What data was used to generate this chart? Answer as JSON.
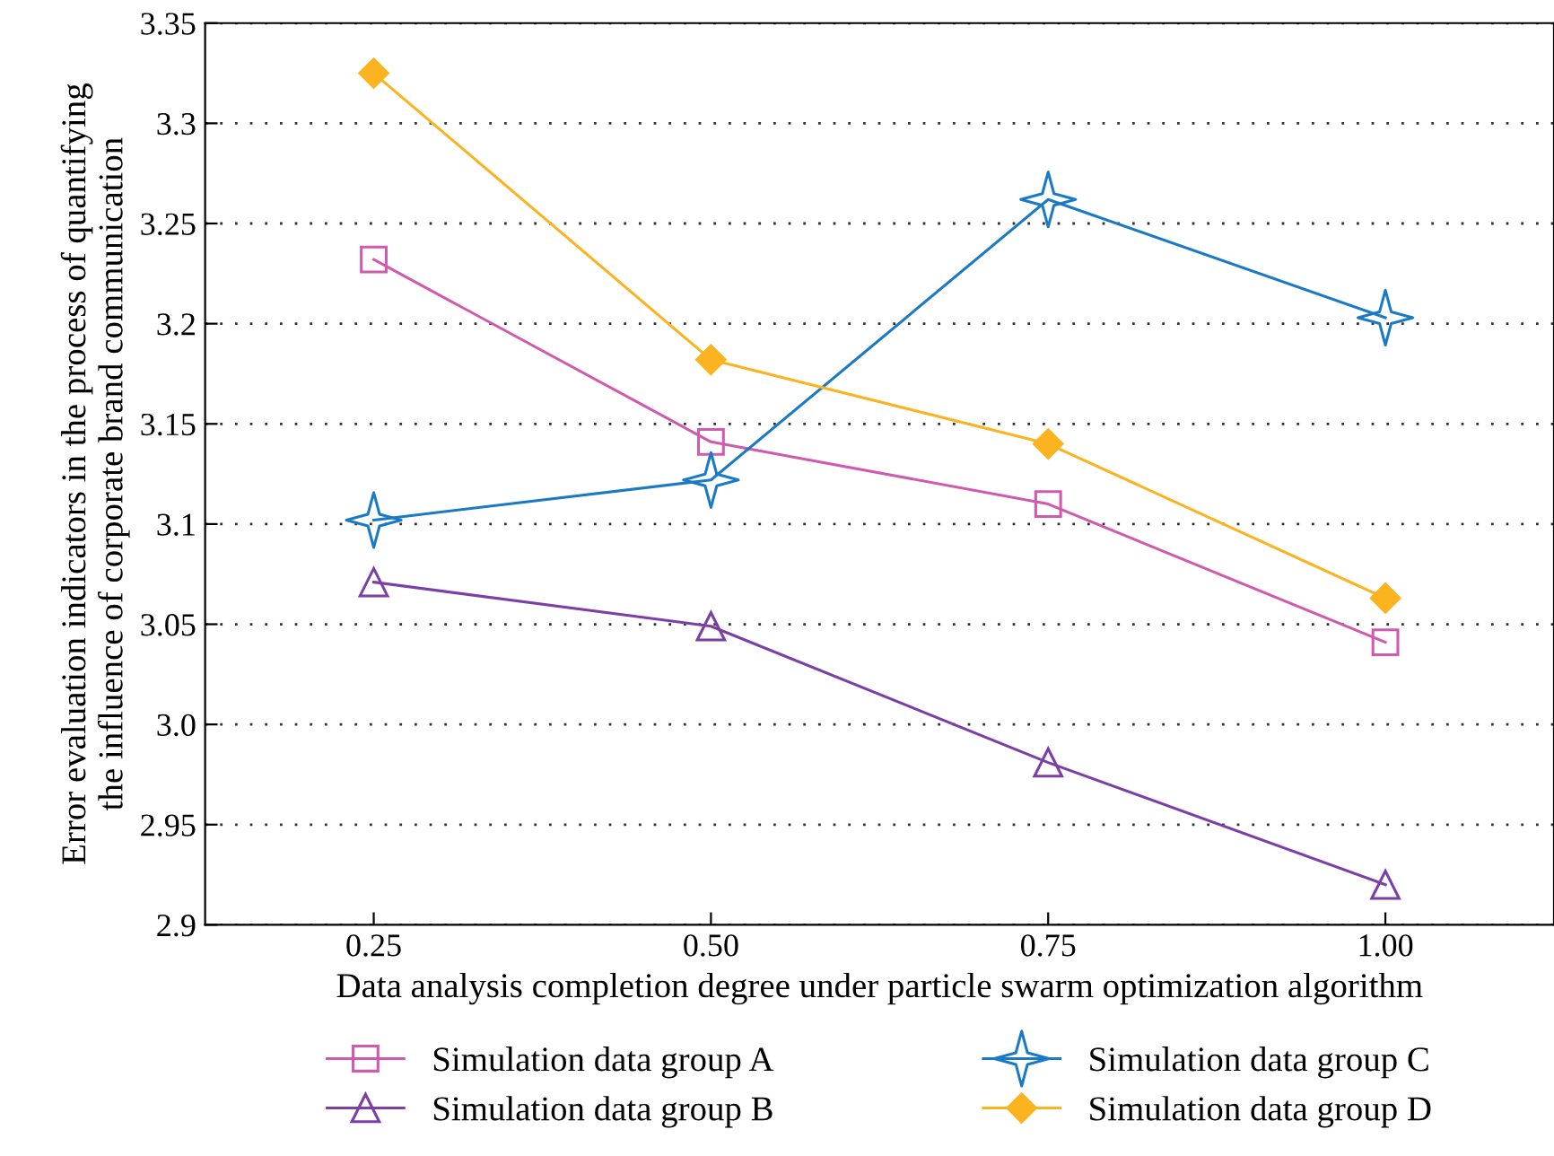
{
  "chart_data": {
    "type": "line",
    "xlabel": "Data analysis completion degree under particle swarm optimization algorithm",
    "ylabel": "Error evaluation indicators in the process of quantifying\nthe influence of corporate brand communication",
    "x": [
      0.25,
      0.5,
      0.75,
      1.0
    ],
    "xlim": [
      0.125,
      1.125
    ],
    "xticks": [
      {
        "value": 0.25,
        "label": "0.25"
      },
      {
        "value": 0.5,
        "label": "0.50"
      },
      {
        "value": 0.75,
        "label": "0.75"
      },
      {
        "value": 1.0,
        "label": "1.00"
      }
    ],
    "ylim": [
      2.9,
      3.35
    ],
    "yticks": [
      2.9,
      2.95,
      {
        "value": 3.0,
        "label": "3.0"
      },
      3.05,
      3.1,
      3.15,
      3.2,
      3.25,
      3.3,
      3.35
    ],
    "grid": "y",
    "legend": "bottom",
    "line_style": "solid",
    "series": [
      {
        "name": "Simulation data group A",
        "color": "#d05aad",
        "marker": "square",
        "values": [
          3.232,
          3.141,
          3.11,
          3.041
        ]
      },
      {
        "name": "Simulation data group B",
        "color": "#7b3fa6",
        "marker": "triangle",
        "values": [
          3.071,
          3.049,
          2.981,
          2.92
        ]
      },
      {
        "name": "Simulation data group C",
        "color": "#1a7ac6",
        "marker": "star",
        "values": [
          3.102,
          3.122,
          3.262,
          3.203
        ]
      },
      {
        "name": "Simulation data group D",
        "color": "#fbb320",
        "marker": "diamond",
        "values": [
          3.325,
          3.182,
          3.14,
          3.063
        ]
      }
    ]
  }
}
